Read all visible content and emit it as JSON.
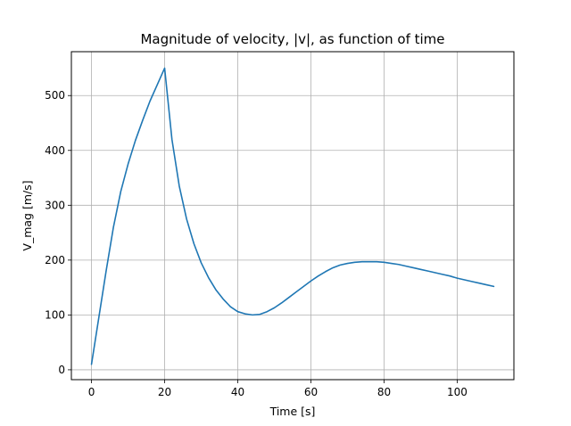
{
  "chart_data": {
    "type": "line",
    "title": "Magnitude of velocity, |v|, as function of time",
    "xlabel": "Time [s]",
    "ylabel": "V_mag [m/s]",
    "xlim": [
      -5.5,
      115.5
    ],
    "ylim": [
      -18,
      580
    ],
    "xticks": [
      0,
      20,
      40,
      60,
      80,
      100
    ],
    "yticks": [
      0,
      100,
      200,
      300,
      400,
      500
    ],
    "grid": true,
    "line_color": "#1f77b4",
    "series": [
      {
        "x": [
          0,
          2,
          4,
          6,
          8,
          10,
          12,
          14,
          16,
          18,
          20,
          22,
          24,
          26,
          28,
          30,
          32,
          34,
          36,
          38,
          40,
          42,
          44,
          46,
          48,
          50,
          52,
          54,
          56,
          58,
          60,
          62,
          64,
          66,
          68,
          70,
          72,
          74,
          76,
          78,
          80,
          82,
          84,
          86,
          88,
          90,
          92,
          94,
          96,
          98,
          100,
          102,
          104,
          106,
          108,
          110
        ],
        "values": [
          10,
          95,
          180,
          260,
          325,
          375,
          418,
          455,
          490,
          520,
          550,
          420,
          335,
          275,
          230,
          195,
          168,
          146,
          129,
          115,
          106,
          102,
          100,
          101,
          106,
          113,
          122,
          132,
          142,
          152,
          162,
          171,
          179,
          186,
          191,
          194,
          196,
          197,
          197,
          197,
          196,
          194,
          192,
          189,
          186,
          183,
          180,
          177,
          174,
          171,
          167,
          164,
          161,
          158,
          155,
          152
        ]
      }
    ]
  }
}
